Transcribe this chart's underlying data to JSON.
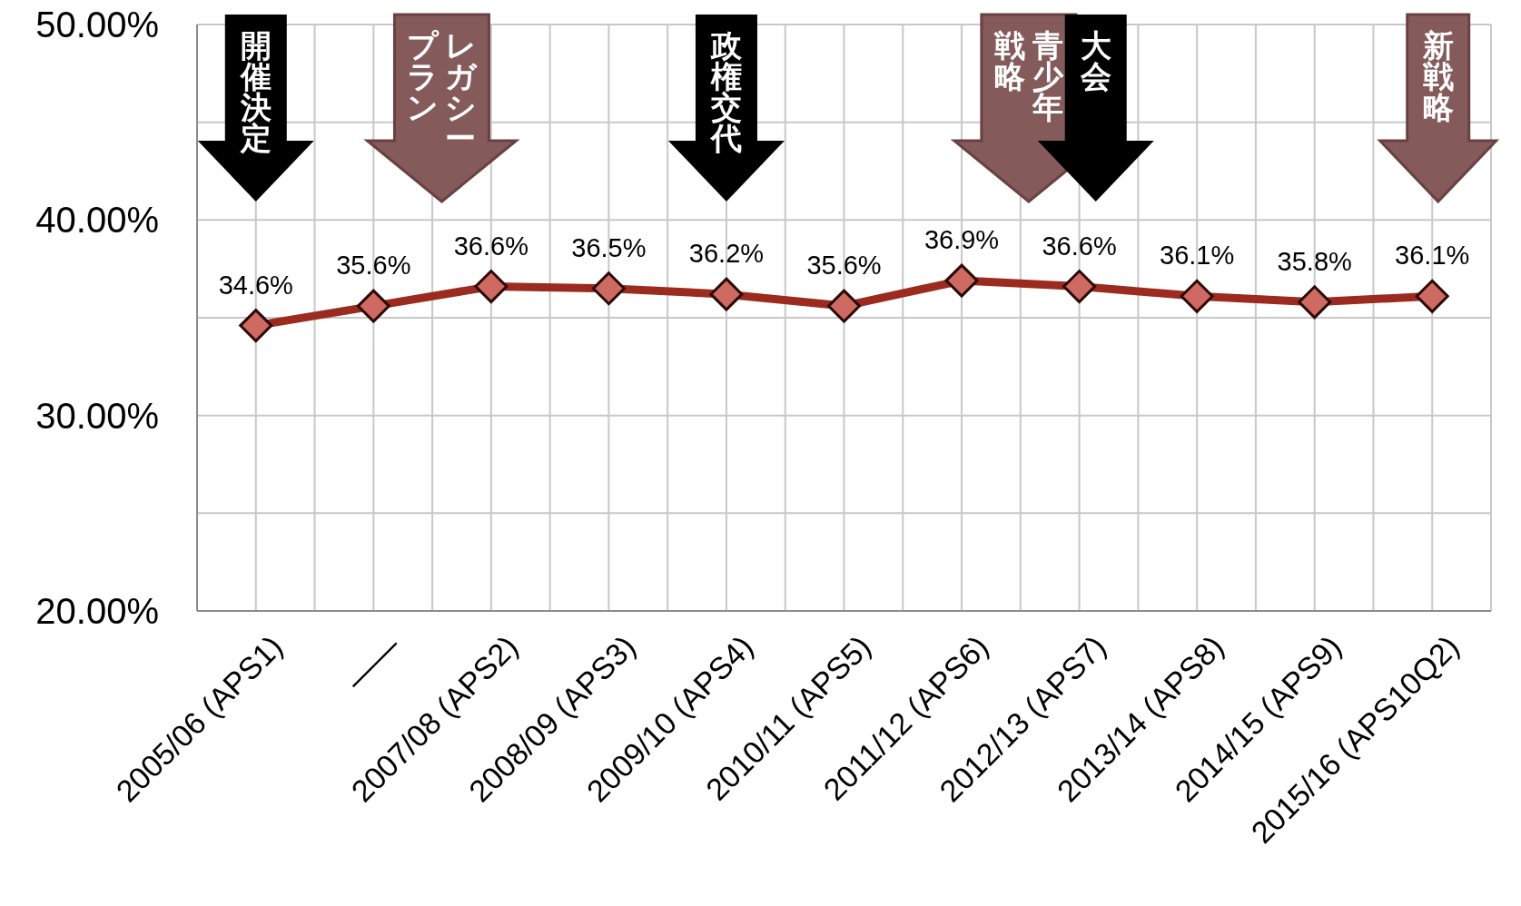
{
  "chart_data": {
    "type": "line",
    "categories": [
      "2005/06 (APS1)",
      "――",
      "2007/08 (APS2)",
      "2008/09 (APS3)",
      "2009/10 (APS4)",
      "2010/11 (APS5)",
      "2011/12 (APS6)",
      "2012/13 (APS7)",
      "2013/14 (APS8)",
      "2014/15 (APS9)",
      "2015/16 (APS10Q2)"
    ],
    "series": [
      {
        "color": "#9c2b1f",
        "values": [
          34.6,
          35.6,
          36.6,
          36.5,
          36.2,
          35.6,
          36.9,
          36.6,
          36.1,
          35.8,
          36.1
        ],
        "value_labels": [
          "34.6%",
          "35.6%",
          "36.6%",
          "36.5%",
          "36.2%",
          "35.6%",
          "36.9%",
          "36.6%",
          "36.1%",
          "35.8%",
          "36.1%"
        ]
      }
    ],
    "ylim": [
      20,
      50
    ],
    "yticks": [
      {
        "value": 20,
        "label": "20.00%"
      },
      {
        "value": 25,
        "label": null
      },
      {
        "value": 30,
        "label": "30.00%"
      },
      {
        "value": 35,
        "label": null
      },
      {
        "value": 40,
        "label": "40.00%"
      },
      {
        "value": 45,
        "label": null
      },
      {
        "value": 50,
        "label": "50.00%"
      }
    ],
    "grid": true,
    "marker": "diamond",
    "line_style": "solid",
    "annotations": [
      "開催決定",
      "レガシープラン",
      "政権交代",
      "青少年戦略",
      "大会",
      "新戦略"
    ]
  }
}
